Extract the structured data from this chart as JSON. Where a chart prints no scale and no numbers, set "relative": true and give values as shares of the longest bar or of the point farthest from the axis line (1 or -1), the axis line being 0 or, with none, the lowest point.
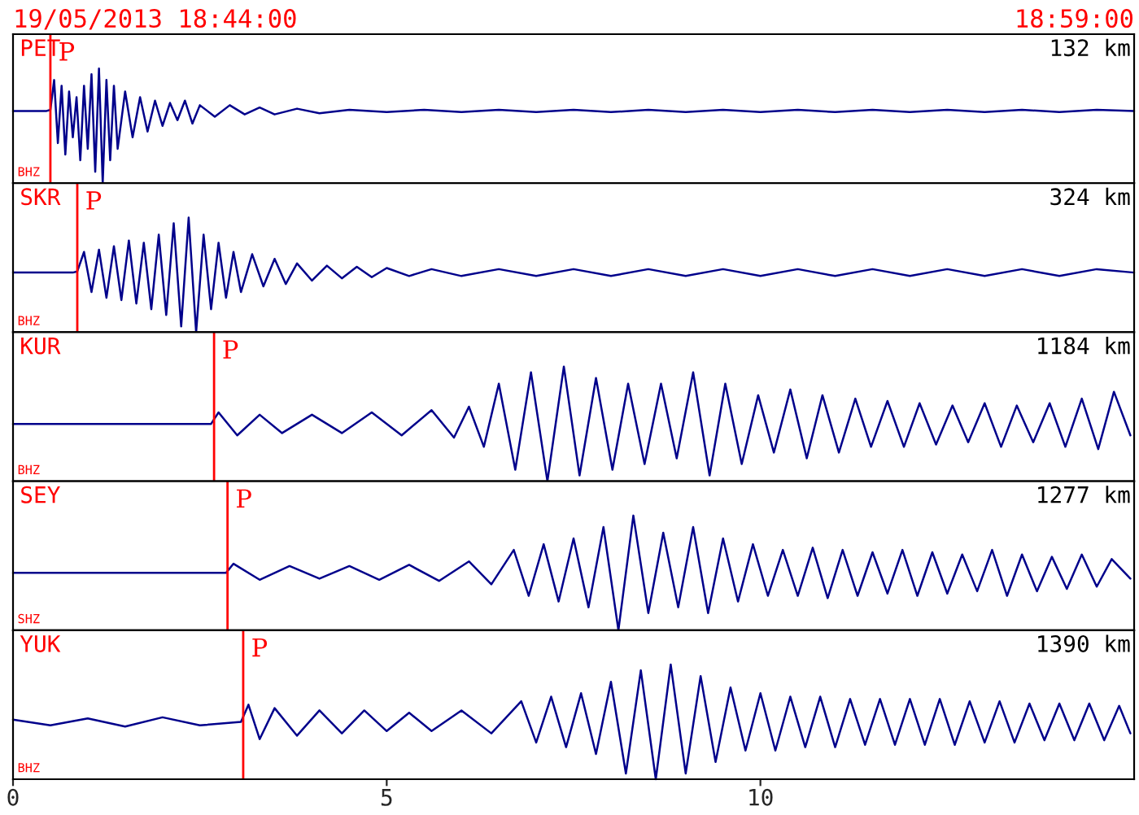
{
  "chart_data": [
    {
      "type": "line",
      "relative": true,
      "title": "19/05/2013 18:44:00",
      "subtitle": "18:59:00",
      "annotations": [
        "PET",
        "132 km",
        "BHZ"
      ],
      "color": "#00008b",
      "xlim": [
        0,
        15
      ],
      "tick_labels": false,
      "ref_lines": [
        {
          "axis": "x",
          "value": 0.5,
          "label": "P",
          "color": "#ff0000"
        }
      ],
      "x": [
        0,
        0.45,
        0.5,
        0.55,
        0.6,
        0.65,
        0.7,
        0.75,
        0.8,
        0.85,
        0.9,
        0.95,
        1.0,
        1.05,
        1.1,
        1.15,
        1.2,
        1.25,
        1.3,
        1.35,
        1.4,
        1.5,
        1.6,
        1.7,
        1.8,
        1.9,
        2.0,
        2.1,
        2.2,
        2.3,
        2.4,
        2.5,
        2.7,
        2.9,
        3.1,
        3.3,
        3.5,
        3.8,
        4.1,
        4.5,
        5,
        5.5,
        6,
        6.5,
        7,
        7.5,
        8,
        8.5,
        9,
        9.5,
        10,
        10.5,
        11,
        11.5,
        12,
        12.5,
        13,
        13.5,
        14,
        14.5,
        15
      ],
      "values": [
        0.63,
        0.63,
        0.64,
        0.9,
        0.35,
        0.85,
        0.25,
        0.8,
        0.4,
        0.75,
        0.2,
        0.85,
        0.3,
        0.95,
        0.1,
        1.0,
        0.0,
        0.9,
        0.2,
        0.85,
        0.3,
        0.8,
        0.4,
        0.75,
        0.45,
        0.72,
        0.5,
        0.7,
        0.55,
        0.72,
        0.52,
        0.68,
        0.58,
        0.68,
        0.6,
        0.66,
        0.6,
        0.65,
        0.61,
        0.64,
        0.62,
        0.64,
        0.62,
        0.64,
        0.62,
        0.64,
        0.62,
        0.64,
        0.62,
        0.64,
        0.62,
        0.64,
        0.62,
        0.64,
        0.62,
        0.64,
        0.62,
        0.64,
        0.62,
        0.64,
        0.63
      ]
    },
    {
      "type": "line",
      "relative": true,
      "annotations": [
        "SKR",
        "324 km",
        "BHZ"
      ],
      "color": "#00008b",
      "xlim": [
        0,
        15
      ],
      "tick_labels": false,
      "ref_lines": [
        {
          "axis": "x",
          "value": 0.86,
          "label": "P",
          "color": "#ff0000"
        }
      ],
      "x": [
        0,
        0.8,
        0.86,
        0.95,
        1.05,
        1.15,
        1.25,
        1.35,
        1.45,
        1.55,
        1.65,
        1.75,
        1.85,
        1.95,
        2.05,
        2.15,
        2.25,
        2.35,
        2.45,
        2.55,
        2.65,
        2.75,
        2.85,
        2.95,
        3.05,
        3.2,
        3.35,
        3.5,
        3.65,
        3.8,
        4.0,
        4.2,
        4.4,
        4.6,
        4.8,
        5.0,
        5.3,
        5.6,
        6,
        6.5,
        7,
        7.5,
        8,
        8.5,
        9,
        9.5,
        10,
        10.5,
        11,
        11.5,
        12,
        12.5,
        13,
        13.5,
        14,
        14.5,
        15
      ],
      "values": [
        0.52,
        0.52,
        0.53,
        0.7,
        0.35,
        0.72,
        0.3,
        0.75,
        0.28,
        0.8,
        0.25,
        0.78,
        0.2,
        0.85,
        0.15,
        0.95,
        0.05,
        1.0,
        0.0,
        0.85,
        0.2,
        0.78,
        0.3,
        0.7,
        0.35,
        0.68,
        0.4,
        0.64,
        0.42,
        0.6,
        0.45,
        0.58,
        0.47,
        0.57,
        0.48,
        0.56,
        0.49,
        0.55,
        0.49,
        0.55,
        0.49,
        0.55,
        0.49,
        0.55,
        0.49,
        0.55,
        0.49,
        0.55,
        0.49,
        0.55,
        0.49,
        0.55,
        0.49,
        0.55,
        0.49,
        0.55,
        0.52
      ]
    },
    {
      "type": "line",
      "relative": true,
      "annotations": [
        "KUR",
        "1184 km",
        "BHZ"
      ],
      "color": "#00008b",
      "xlim": [
        0,
        15
      ],
      "tick_labels": false,
      "ref_lines": [
        {
          "axis": "x",
          "value": 2.69,
          "label": "P",
          "color": "#ff0000"
        }
      ],
      "x": [
        0,
        2.65,
        2.75,
        3.0,
        3.3,
        3.6,
        4.0,
        4.4,
        4.8,
        5.2,
        5.6,
        5.9,
        6.1,
        6.3,
        6.5,
        6.72,
        6.93,
        7.15,
        7.37,
        7.58,
        7.8,
        8.02,
        8.23,
        8.45,
        8.67,
        8.88,
        9.1,
        9.32,
        9.53,
        9.75,
        9.97,
        10.18,
        10.4,
        10.62,
        10.83,
        11.05,
        11.27,
        11.48,
        11.7,
        11.92,
        12.13,
        12.35,
        12.57,
        12.78,
        13.0,
        13.22,
        13.43,
        13.65,
        13.87,
        14.08,
        14.3,
        14.52,
        14.73,
        14.95
      ],
      "values": [
        0.5,
        0.5,
        0.6,
        0.4,
        0.58,
        0.42,
        0.58,
        0.42,
        0.6,
        0.4,
        0.62,
        0.38,
        0.65,
        0.3,
        0.85,
        0.1,
        0.95,
        0.0,
        1.0,
        0.05,
        0.9,
        0.1,
        0.85,
        0.15,
        0.85,
        0.2,
        0.95,
        0.05,
        0.85,
        0.15,
        0.75,
        0.25,
        0.8,
        0.2,
        0.75,
        0.25,
        0.72,
        0.3,
        0.7,
        0.3,
        0.68,
        0.32,
        0.66,
        0.34,
        0.68,
        0.3,
        0.66,
        0.34,
        0.68,
        0.3,
        0.72,
        0.28,
        0.78,
        0.4
      ]
    },
    {
      "type": "line",
      "relative": true,
      "annotations": [
        "SEY",
        "1277 km",
        "SHZ"
      ],
      "color": "#00008b",
      "xlim": [
        0,
        15
      ],
      "tick_labels": false,
      "ref_lines": [
        {
          "axis": "x",
          "value": 2.87,
          "label": "P",
          "color": "#ff0000"
        }
      ],
      "x": [
        0,
        2.85,
        2.95,
        3.3,
        3.7,
        4.1,
        4.5,
        4.9,
        5.3,
        5.7,
        6.1,
        6.4,
        6.7,
        6.9,
        7.1,
        7.3,
        7.5,
        7.7,
        7.9,
        8.1,
        8.3,
        8.5,
        8.7,
        8.9,
        9.1,
        9.3,
        9.5,
        9.7,
        9.9,
        10.1,
        10.3,
        10.5,
        10.7,
        10.9,
        11.1,
        11.3,
        11.5,
        11.7,
        11.9,
        12.1,
        12.3,
        12.5,
        12.7,
        12.9,
        13.1,
        13.3,
        13.5,
        13.7,
        13.9,
        14.1,
        14.3,
        14.5,
        14.7,
        14.95
      ],
      "values": [
        0.5,
        0.5,
        0.58,
        0.44,
        0.56,
        0.45,
        0.56,
        0.44,
        0.57,
        0.43,
        0.6,
        0.4,
        0.7,
        0.3,
        0.75,
        0.25,
        0.8,
        0.2,
        0.9,
        0.0,
        1.0,
        0.15,
        0.85,
        0.2,
        0.9,
        0.15,
        0.8,
        0.25,
        0.75,
        0.3,
        0.7,
        0.3,
        0.72,
        0.28,
        0.7,
        0.3,
        0.68,
        0.32,
        0.7,
        0.3,
        0.68,
        0.32,
        0.66,
        0.34,
        0.7,
        0.3,
        0.66,
        0.34,
        0.64,
        0.36,
        0.66,
        0.38,
        0.62,
        0.45
      ]
    },
    {
      "type": "line",
      "relative": true,
      "annotations": [
        "YUK",
        "1390 km",
        "BHZ"
      ],
      "color": "#00008b",
      "xlim": [
        0,
        15
      ],
      "xticks": [
        0,
        5,
        10
      ],
      "tick_labels": "x",
      "ref_lines": [
        {
          "axis": "x",
          "value": 3.08,
          "label": "P",
          "color": "#ff0000"
        }
      ],
      "x": [
        0,
        0.5,
        1.0,
        1.5,
        2.0,
        2.5,
        3.05,
        3.15,
        3.3,
        3.5,
        3.8,
        4.1,
        4.4,
        4.7,
        5.0,
        5.3,
        5.6,
        6.0,
        6.4,
        6.8,
        7.0,
        7.2,
        7.4,
        7.6,
        7.8,
        8.0,
        8.2,
        8.4,
        8.6,
        8.8,
        9.0,
        9.2,
        9.4,
        9.6,
        9.8,
        10.0,
        10.2,
        10.4,
        10.6,
        10.8,
        11.0,
        11.2,
        11.4,
        11.6,
        11.8,
        12.0,
        12.2,
        12.4,
        12.6,
        12.8,
        13.0,
        13.2,
        13.4,
        13.6,
        13.8,
        14.0,
        14.2,
        14.4,
        14.6,
        14.8,
        14.95
      ],
      "values": [
        0.52,
        0.47,
        0.53,
        0.46,
        0.54,
        0.47,
        0.5,
        0.65,
        0.35,
        0.62,
        0.38,
        0.6,
        0.4,
        0.6,
        0.42,
        0.58,
        0.42,
        0.6,
        0.4,
        0.68,
        0.32,
        0.72,
        0.28,
        0.75,
        0.22,
        0.85,
        0.05,
        0.95,
        0.0,
        1.0,
        0.05,
        0.9,
        0.15,
        0.8,
        0.25,
        0.75,
        0.25,
        0.72,
        0.28,
        0.72,
        0.28,
        0.7,
        0.3,
        0.7,
        0.3,
        0.7,
        0.3,
        0.7,
        0.3,
        0.68,
        0.32,
        0.68,
        0.32,
        0.66,
        0.34,
        0.66,
        0.34,
        0.66,
        0.34,
        0.64,
        0.4
      ]
    }
  ]
}
